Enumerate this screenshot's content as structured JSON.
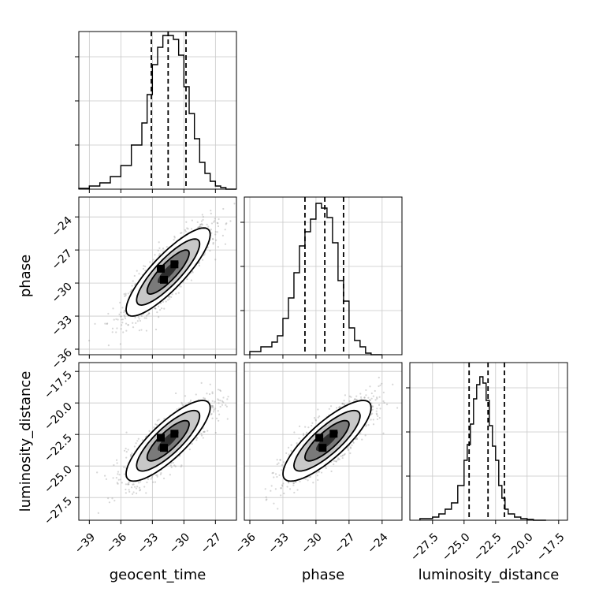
{
  "chart_data": {
    "type": "corner",
    "parameters": [
      {
        "name": "geocent_time",
        "label": "geocent_time",
        "range": [
          -40,
          -25
        ],
        "ticks": [
          -39,
          -36,
          -33,
          -30,
          -27
        ],
        "tick_labels": [
          "−39",
          "−36",
          "−33",
          "−30",
          "−27"
        ],
        "mean": -31.5,
        "sigma": 2.0
      },
      {
        "name": "phase",
        "label": "phase",
        "range": [
          -36.5,
          -22.2
        ],
        "ticks": [
          -36,
          -33,
          -30,
          -27,
          -24
        ],
        "tick_labels": [
          "−36",
          "−33",
          "−30",
          "−27",
          "−24"
        ],
        "mean": -29.0,
        "sigma": 2.0
      },
      {
        "name": "luminosity_distance",
        "label": "luminosity_distance",
        "range": [
          -29.3,
          -16.8
        ],
        "ticks": [
          -27.5,
          -25.0,
          -22.5,
          -20.0,
          -17.5
        ],
        "tick_labels": [
          "−27.5",
          "−25.0",
          "−22.5",
          "−20.0",
          "−17.5"
        ],
        "mean": -23.0,
        "sigma": 1.6
      }
    ],
    "histograms": [
      {
        "parameter": "geocent_time",
        "quantiles": [
          -33.1,
          -31.5,
          -29.8
        ],
        "bin_edges": [
          -40,
          -39,
          -38,
          -37,
          -36,
          -35,
          -34,
          -33.5,
          -33,
          -32.5,
          -32,
          -31.5,
          -31,
          -30.5,
          -30,
          -29.5,
          -29,
          -28.5,
          -28,
          -27.5,
          -27,
          -26.5,
          -26,
          -25
        ],
        "counts": [
          0.005,
          0.02,
          0.04,
          0.08,
          0.15,
          0.28,
          0.42,
          0.6,
          0.79,
          0.9,
          0.975,
          0.975,
          0.95,
          0.85,
          0.65,
          0.48,
          0.32,
          0.17,
          0.1,
          0.05,
          0.02,
          0.01,
          0.0
        ]
      },
      {
        "parameter": "phase",
        "quantiles": [
          -31.0,
          -29.2,
          -27.5
        ],
        "bin_edges": [
          -36,
          -35,
          -34,
          -33.5,
          -33,
          -32.5,
          -32,
          -31.5,
          -31,
          -30.5,
          -30,
          -29.5,
          -29,
          -28.5,
          -28,
          -27.5,
          -27,
          -26.5,
          -26,
          -25.5,
          -25,
          -24
        ],
        "counts": [
          0.02,
          0.05,
          0.08,
          0.12,
          0.23,
          0.36,
          0.52,
          0.69,
          0.78,
          0.86,
          0.96,
          0.93,
          0.87,
          0.71,
          0.47,
          0.34,
          0.17,
          0.09,
          0.05,
          0.01,
          0.0
        ]
      },
      {
        "parameter": "luminosity_distance",
        "quantiles": [
          -24.6,
          -23.1,
          -21.8
        ],
        "bin_edges": [
          -28.5,
          -27.5,
          -27.0,
          -26.5,
          -26.0,
          -25.5,
          -25.0,
          -24.75,
          -24.5,
          -24.25,
          -24.0,
          -23.75,
          -23.5,
          -23.25,
          -23.0,
          -22.75,
          -22.5,
          -22.25,
          -22.0,
          -21.75,
          -21.5,
          -21.0,
          -20.5,
          -20.0,
          -19.5,
          -18.5
        ],
        "counts": [
          0.01,
          0.02,
          0.04,
          0.07,
          0.11,
          0.22,
          0.38,
          0.48,
          0.61,
          0.77,
          0.86,
          0.91,
          0.87,
          0.76,
          0.6,
          0.47,
          0.38,
          0.22,
          0.14,
          0.07,
          0.04,
          0.02,
          0.01,
          0.005,
          0.0
        ]
      }
    ],
    "pairs": [
      {
        "x": "geocent_time",
        "y": "phase",
        "correlation": 0.85
      },
      {
        "x": "geocent_time",
        "y": "luminosity_distance",
        "correlation": 0.82
      },
      {
        "x": "phase",
        "y": "luminosity_distance",
        "correlation": 0.82
      }
    ],
    "contour_levels_sigma": [
      0.5,
      1.0,
      1.5,
      2.0
    ],
    "grid": true,
    "axis_labels": {
      "x": [
        "geocent_time",
        "phase",
        "luminosity_distance"
      ],
      "y": [
        "phase",
        "luminosity_distance"
      ]
    }
  }
}
